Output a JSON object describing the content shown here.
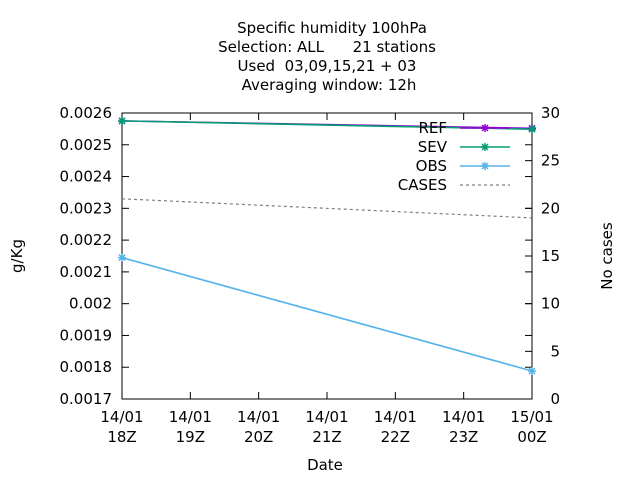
{
  "chart_data": {
    "type": "line",
    "title": [
      "Specific humidity 100hPa",
      "Selection: ALL      21 stations",
      "Used  03,09,15,21 + 03",
      "Averaging window: 12h"
    ],
    "xlabel": "Date",
    "ylabel": "g/Kg",
    "y2label": "No cases",
    "x_ticks": [
      [
        "14/01",
        "18Z"
      ],
      [
        "14/01",
        "19Z"
      ],
      [
        "14/01",
        "20Z"
      ],
      [
        "14/01",
        "21Z"
      ],
      [
        "14/01",
        "22Z"
      ],
      [
        "14/01",
        "23Z"
      ],
      [
        "15/01",
        "00Z"
      ]
    ],
    "x": [
      0,
      6
    ],
    "xlim": [
      0,
      6
    ],
    "ylim": [
      0.0017,
      0.0026
    ],
    "yticks": [
      "0.0017",
      "0.0018",
      "0.0019",
      "0.002",
      "0.0021",
      "0.0022",
      "0.0023",
      "0.0024",
      "0.0025",
      "0.0026"
    ],
    "y2lim": [
      0,
      30
    ],
    "y2ticks": [
      "0",
      "5",
      "10",
      "15",
      "20",
      "25",
      "30"
    ],
    "grid": false,
    "legend_position": "top-right",
    "series": [
      {
        "name": "REF",
        "axis": "y",
        "values": [
          0.002575,
          0.002552
        ],
        "color": "#9400d3",
        "style": "line-points"
      },
      {
        "name": "SEV",
        "axis": "y",
        "values": [
          0.002575,
          0.002549
        ],
        "color": "#009e73",
        "style": "line-points"
      },
      {
        "name": "OBS",
        "axis": "y",
        "values": [
          0.002145,
          0.001788
        ],
        "color": "#56b4e9",
        "style": "line-points"
      },
      {
        "name": "CASES",
        "axis": "y2",
        "values": [
          21,
          19
        ],
        "color": "#808080",
        "style": "dashed"
      }
    ]
  }
}
